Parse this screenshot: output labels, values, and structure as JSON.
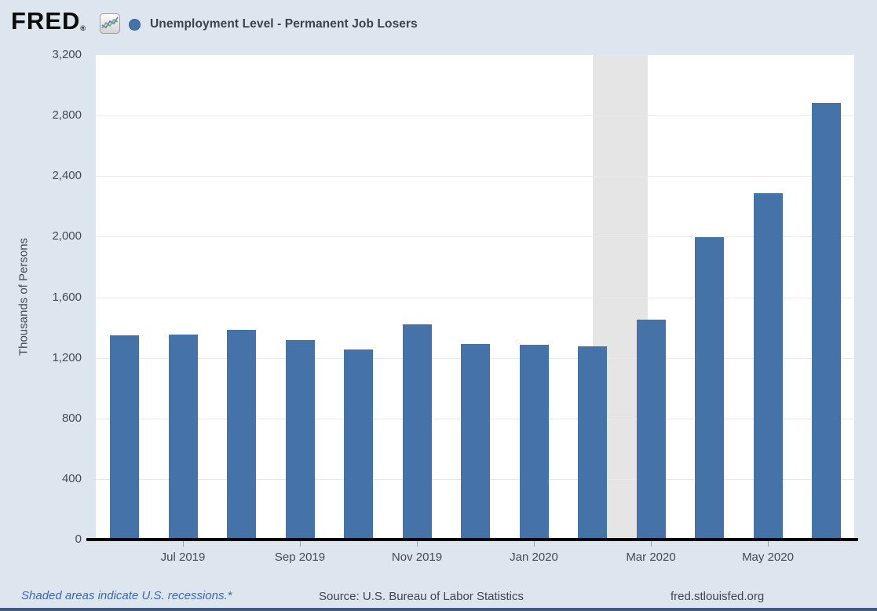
{
  "header": {
    "logo_text": "FRED",
    "registered_mark": "®",
    "series_title": "Unemployment Level - Permanent Job Losers",
    "legend_dot_color": "#4573a7"
  },
  "chart_data": {
    "type": "bar",
    "title": "Unemployment Level - Permanent Job Losers",
    "ylabel": "Thousands of Persons",
    "xlabel": "",
    "ylim": [
      0,
      3200
    ],
    "ytick_step": 400,
    "grid": "horizontal",
    "legend_position": "top-left",
    "categories": [
      "Jun 2019",
      "Jul 2019",
      "Aug 2019",
      "Sep 2019",
      "Oct 2019",
      "Nov 2019",
      "Dec 2019",
      "Jan 2020",
      "Feb 2020",
      "Mar 2020",
      "Apr 2020",
      "May 2020",
      "Jun 2020"
    ],
    "values": [
      1351,
      1356,
      1385,
      1317,
      1255,
      1423,
      1291,
      1287,
      1278,
      1455,
      1995,
      2290,
      2883
    ],
    "x_tick_labels": [
      {
        "label": "Jul 2019",
        "bar_index": 1
      },
      {
        "label": "Sep 2019",
        "bar_index": 3
      },
      {
        "label": "Nov 2019",
        "bar_index": 5
      },
      {
        "label": "Jan 2020",
        "bar_index": 7
      },
      {
        "label": "Mar 2020",
        "bar_index": 9
      },
      {
        "label": "May 2020",
        "bar_index": 11
      }
    ],
    "bar_color": "#4573a7",
    "recession_shading": {
      "left_frac": 0.655,
      "width_frac": 0.0728,
      "color": "#e5e5e5"
    },
    "grid_color": "#eaeaea",
    "axis_line_color": "#000000"
  },
  "footer": {
    "note": "Shaded areas indicate U.S. recessions.*",
    "source": "Source: U.S. Bureau of Labor Statistics",
    "site": "fred.stlouisfed.org"
  },
  "colors": {
    "background": "#dde5ee",
    "plot_background": "#ffffff",
    "bottom_border": "#41597c",
    "text": "#444a52",
    "footnote_link": "#3d68ae"
  }
}
